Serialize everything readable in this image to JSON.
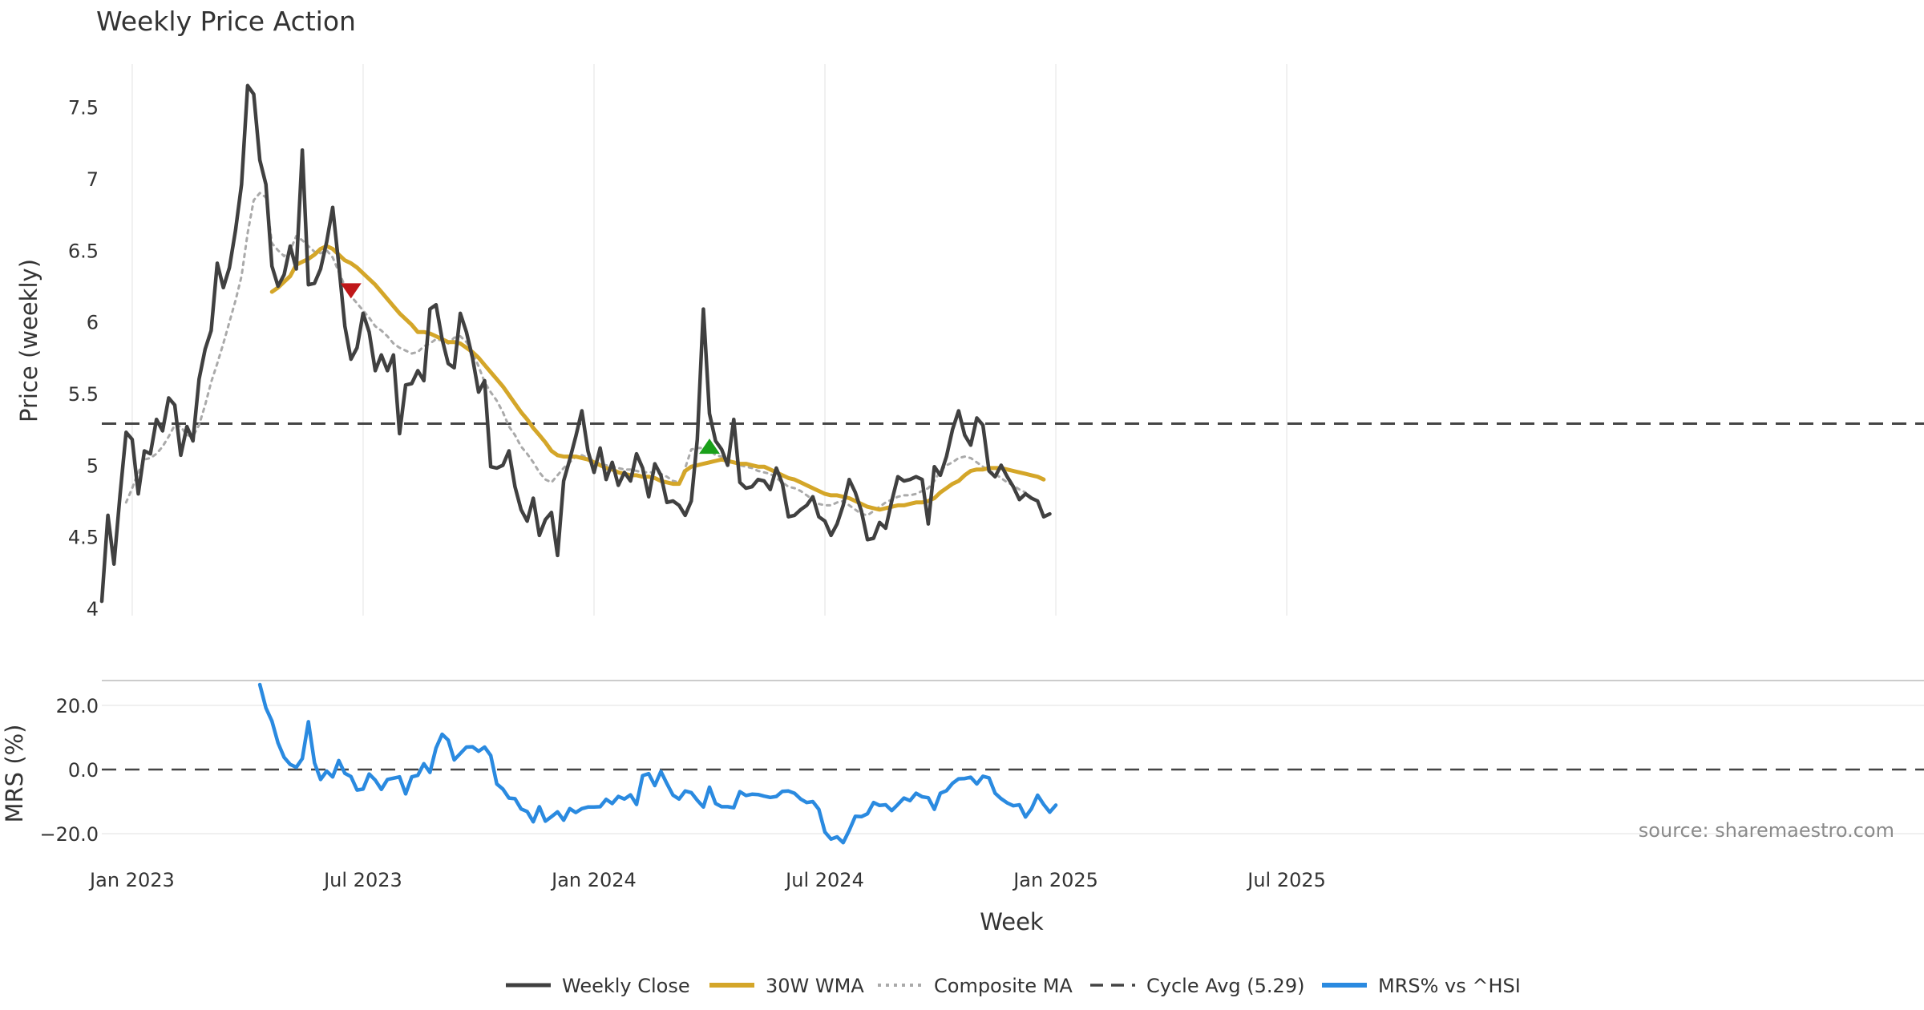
{
  "chart_data": {
    "type": "line",
    "title": "Weekly Price Action",
    "xlabel": "Week",
    "x_ticks": [
      "Jan 2023",
      "Jul 2023",
      "Jan 2024",
      "Jul 2024",
      "Jan 2025",
      "Jul 2025"
    ],
    "source": "source: sharemaestro.com",
    "legend_position": "bottom-center",
    "grid": true,
    "price_panel": {
      "ylabel": "Price (weekly)",
      "ylim": [
        3.95,
        7.8
      ],
      "y_ticks": [
        4,
        4.5,
        5,
        5.5,
        6,
        6.5,
        7,
        7.5
      ],
      "y_tick_labels": [
        "4",
        "4.5",
        "5",
        "5.5",
        "6",
        "6.5",
        "7",
        "7.5"
      ],
      "cycle_avg": 5.29,
      "series": [
        {
          "name": "Weekly Close",
          "color": "#404040",
          "style": "solid",
          "values": [
            4.05,
            4.65,
            4.31,
            4.79,
            5.23,
            5.18,
            4.8,
            5.1,
            5.08,
            5.32,
            5.24,
            5.47,
            5.42,
            5.07,
            5.27,
            5.17,
            5.6,
            5.81,
            5.94,
            6.41,
            6.24,
            6.38,
            6.64,
            6.96,
            7.65,
            7.59,
            7.13,
            6.96,
            6.39,
            6.25,
            6.33,
            6.53,
            6.37,
            7.2,
            6.26,
            6.27,
            6.37,
            6.56,
            6.8,
            6.4,
            5.97,
            5.74,
            5.82,
            6.06,
            5.93,
            5.66,
            5.77,
            5.66,
            5.77,
            5.22,
            5.56,
            5.57,
            5.66,
            5.59,
            6.09,
            6.12,
            5.88,
            5.71,
            5.68,
            6.06,
            5.93,
            5.75,
            5.51,
            5.59,
            4.99,
            4.98,
            5.0,
            5.1,
            4.85,
            4.69,
            4.61,
            4.77,
            4.51,
            4.62,
            4.67,
            4.37,
            4.89,
            5.04,
            5.2,
            5.38,
            5.1,
            4.95,
            5.12,
            4.9,
            5.02,
            4.86,
            4.95,
            4.89,
            5.08,
            4.98,
            4.78,
            5.01,
            4.93,
            4.74,
            4.75,
            4.72,
            4.65,
            4.75,
            5.18,
            6.09,
            5.36,
            5.17,
            5.11,
            5.0,
            5.32,
            4.88,
            4.84,
            4.85,
            4.9,
            4.89,
            4.83,
            4.98,
            4.87,
            4.64,
            4.65,
            4.69,
            4.72,
            4.78,
            4.64,
            4.61,
            4.51,
            4.59,
            4.72,
            4.9,
            4.81,
            4.68,
            4.48,
            4.49,
            4.6,
            4.56,
            4.75,
            4.92,
            4.89,
            4.9,
            4.92,
            4.9,
            4.59,
            4.99,
            4.93,
            5.06,
            5.25,
            5.38,
            5.21,
            5.14,
            5.33,
            5.28,
            4.96,
            4.92,
            5.0,
            4.92,
            4.85,
            4.76,
            4.8,
            4.77,
            4.75,
            4.64,
            4.66
          ]
        },
        {
          "name": "30W WMA",
          "color": "#d4a629",
          "style": "solid",
          "values": [
            null,
            null,
            null,
            null,
            null,
            null,
            null,
            null,
            null,
            null,
            null,
            null,
            null,
            null,
            null,
            null,
            null,
            null,
            null,
            null,
            null,
            null,
            null,
            null,
            null,
            null,
            null,
            null,
            6.21,
            6.24,
            6.28,
            6.32,
            6.4,
            6.42,
            6.44,
            6.47,
            6.51,
            6.53,
            6.51,
            6.47,
            6.43,
            6.41,
            6.38,
            6.34,
            6.3,
            6.26,
            6.21,
            6.16,
            6.11,
            6.06,
            6.02,
            5.98,
            5.93,
            5.93,
            5.92,
            5.9,
            5.88,
            5.86,
            5.86,
            5.85,
            5.82,
            5.79,
            5.75,
            5.7,
            5.65,
            5.6,
            5.55,
            5.49,
            5.43,
            5.37,
            5.32,
            5.26,
            5.21,
            5.16,
            5.1,
            5.07,
            5.06,
            5.06,
            5.06,
            5.05,
            5.04,
            5.02,
            5.0,
            4.98,
            4.97,
            4.95,
            4.94,
            4.93,
            4.93,
            4.92,
            4.92,
            4.91,
            4.89,
            4.88,
            4.87,
            4.87,
            4.96,
            4.99,
            5.0,
            5.01,
            5.02,
            5.03,
            5.04,
            5.03,
            5.02,
            5.01,
            5.01,
            5.0,
            4.99,
            4.99,
            4.97,
            4.95,
            4.93,
            4.91,
            4.9,
            4.88,
            4.86,
            4.84,
            4.82,
            4.8,
            4.79,
            4.79,
            4.78,
            4.77,
            4.75,
            4.73,
            4.71,
            4.7,
            4.69,
            4.7,
            4.71,
            4.72,
            4.72,
            4.73,
            4.74,
            4.74,
            4.75,
            4.77,
            4.81,
            4.84,
            4.87,
            4.89,
            4.93,
            4.96,
            4.97,
            4.97,
            4.98,
            4.98,
            4.98,
            4.97,
            4.96,
            4.95,
            4.94,
            4.93,
            4.92,
            4.9
          ]
        },
        {
          "name": "Composite MA",
          "color": "#aaaaaa",
          "style": "dotted",
          "values": [
            null,
            null,
            null,
            null,
            4.74,
            4.84,
            4.95,
            5.04,
            5.05,
            5.08,
            5.13,
            5.2,
            5.28,
            5.27,
            5.21,
            5.2,
            5.28,
            5.42,
            5.58,
            5.71,
            5.85,
            6.0,
            6.15,
            6.32,
            6.62,
            6.85,
            6.9,
            6.87,
            6.55,
            6.5,
            6.46,
            6.5,
            6.6,
            6.57,
            6.53,
            6.49,
            6.48,
            6.5,
            6.45,
            6.35,
            6.25,
            6.18,
            6.13,
            6.08,
            6.03,
            5.97,
            5.94,
            5.9,
            5.85,
            5.82,
            5.8,
            5.78,
            5.79,
            5.83,
            5.85,
            5.88,
            5.87,
            5.85,
            5.89,
            5.9,
            5.86,
            5.79,
            5.69,
            5.58,
            5.51,
            5.45,
            5.37,
            5.27,
            5.21,
            5.13,
            5.08,
            5.02,
            4.95,
            4.9,
            4.88,
            4.93,
            4.98,
            5.02,
            5.06,
            5.07,
            5.05,
            5.03,
            5.01,
            5.0,
            4.99,
            4.98,
            4.97,
            4.97,
            4.96,
            4.95,
            4.95,
            4.95,
            4.94,
            4.92,
            4.89,
            4.88,
            4.98,
            5.11,
            5.12,
            5.12,
            5.11,
            5.07,
            5.06,
            5.04,
            5.02,
            5.0,
            4.99,
            4.98,
            4.96,
            4.95,
            4.94,
            4.91,
            4.88,
            4.85,
            4.84,
            4.82,
            4.79,
            4.76,
            4.73,
            4.72,
            4.72,
            4.74,
            4.75,
            4.72,
            4.69,
            4.66,
            4.65,
            4.68,
            4.71,
            4.74,
            4.76,
            4.78,
            4.79,
            4.79,
            4.8,
            4.82,
            4.84,
            4.89,
            4.96,
            5.0,
            5.02,
            5.05,
            5.06,
            5.05,
            5.02,
            4.99,
            4.96,
            4.94,
            4.91,
            4.88,
            4.86,
            4.83,
            4.81
          ]
        },
        {
          "name": "Cycle Avg (5.29)",
          "color": "#444444",
          "style": "dashed",
          "values": [
            5.29
          ]
        }
      ],
      "markers": [
        {
          "type": "sell",
          "shape": "down-triangle",
          "color": "#c0181a",
          "x_index": 41,
          "value": 6.22
        },
        {
          "type": "buy",
          "shape": "up-triangle",
          "color": "#1aa01a",
          "x_index": 100,
          "value": 5.13
        }
      ]
    },
    "mrs_panel": {
      "ylabel": "MRS (%)",
      "ylim": [
        -23.5,
        30
      ],
      "y_ticks": [
        -20,
        0,
        20
      ],
      "y_tick_labels": [
        "−20.0",
        "0.0",
        "20.0"
      ],
      "series": [
        {
          "name": "MRS% vs ^HSI",
          "color": "#2a8ae0",
          "style": "solid",
          "values": [
            null,
            null,
            null,
            null,
            null,
            null,
            null,
            null,
            null,
            null,
            null,
            null,
            null,
            null,
            null,
            null,
            null,
            null,
            null,
            null,
            null,
            null,
            null,
            null,
            null,
            null,
            26.5,
            19.2,
            15.1,
            8.3,
            3.8,
            1.6,
            0.7,
            3.4,
            14.9,
            2.1,
            -3.1,
            -0.5,
            -2.3,
            2.8,
            -1.2,
            -2.2,
            -6.4,
            -6.1,
            -1.4,
            -3.3,
            -6.2,
            -3.1,
            -2.7,
            -2.3,
            -7.6,
            -2.3,
            -1.8,
            1.8,
            -0.9,
            6.7,
            11.0,
            9.2,
            3.0,
            5.0,
            7.0,
            7.1,
            5.7,
            7.0,
            4.4,
            -4.5,
            -6.1,
            -8.9,
            -9.1,
            -12.3,
            -13.1,
            -16.3,
            -11.6,
            -16.1,
            -14.7,
            -13.2,
            -15.8,
            -12.2,
            -13.4,
            -12.2,
            -11.7,
            -11.7,
            -11.6,
            -9.3,
            -10.6,
            -8.4,
            -9.2,
            -7.9,
            -10.9,
            -1.9,
            -1.3,
            -5.0,
            -0.6,
            -4.4,
            -8.0,
            -9.2,
            -6.7,
            -7.2,
            -9.6,
            -11.7,
            -5.5,
            -10.6,
            -11.6,
            -11.6,
            -11.9,
            -6.9,
            -8.1,
            -7.7,
            -7.8,
            -8.3,
            -8.7,
            -8.4,
            -6.8,
            -6.7,
            -7.4,
            -9.2,
            -10.3,
            -10.0,
            -12.4,
            -19.5,
            -21.7,
            -21.0,
            -22.8,
            -19.0,
            -14.6,
            -14.7,
            -13.8,
            -10.3,
            -11.2,
            -11.0,
            -12.8,
            -10.9,
            -8.9,
            -9.7,
            -7.4,
            -8.5,
            -8.8,
            -12.4,
            -7.4,
            -6.6,
            -4.3,
            -2.9,
            -2.8,
            -2.4,
            -4.5,
            -2.1,
            -2.6,
            -7.4,
            -9.1,
            -10.4,
            -11.3,
            -11.0,
            -14.8,
            -12.2,
            -8.0,
            -10.9,
            -13.3,
            -11.1
          ]
        }
      ]
    }
  }
}
